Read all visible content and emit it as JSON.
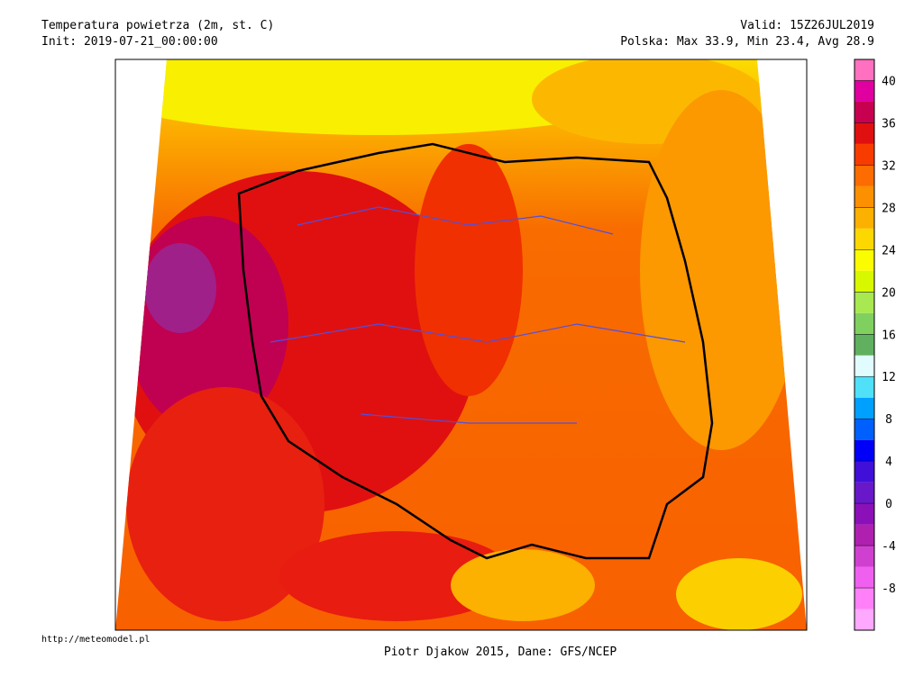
{
  "header": {
    "title": "Temperatura powietrza (2m, st. C)",
    "init": "Init: 2019-07-21_00:00:00",
    "valid": "Valid: 15Z26JUL2019",
    "stats": "Polska: Max 33.9, Min 23.4, Avg 28.9"
  },
  "colorbar": {
    "range": [
      -12,
      42
    ],
    "step": 2,
    "colors": [
      "#ffa8ff",
      "#ff80f8",
      "#f060f0",
      "#d040d0",
      "#b020b0",
      "#8c10b8",
      "#6818c8",
      "#4010d8",
      "#0000f8",
      "#0060ff",
      "#00a0ff",
      "#50e0f8",
      "#e0fcff",
      "#60b060",
      "#80d060",
      "#a8e850",
      "#d8f800",
      "#fcfc00",
      "#fcd800",
      "#fcb000",
      "#fc9000",
      "#fc6c00",
      "#f83c00",
      "#e01010",
      "#c80050",
      "#e000a0",
      "#ff70c0"
    ],
    "ticks": [
      40,
      36,
      32,
      28,
      24,
      20,
      16,
      12,
      8,
      4,
      0,
      -4,
      -8
    ]
  },
  "footer": {
    "url": "http://meteomodel.pl",
    "credit": "Piotr Djakow 2015, Dane: GFS/NCEP"
  }
}
